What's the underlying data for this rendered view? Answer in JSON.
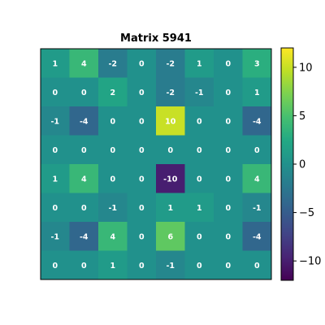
{
  "chart_data": {
    "type": "heatmap",
    "title": "Matrix 5941",
    "xlabel": "",
    "ylabel": "",
    "rows": 8,
    "cols": 8,
    "values": [
      [
        1,
        4,
        -2,
        0,
        -2,
        1,
        0,
        3
      ],
      [
        0,
        0,
        2,
        0,
        -2,
        -1,
        0,
        1
      ],
      [
        -1,
        -4,
        0,
        0,
        10,
        0,
        0,
        -4
      ],
      [
        0,
        0,
        0,
        0,
        0,
        0,
        0,
        0
      ],
      [
        1,
        4,
        0,
        0,
        -10,
        0,
        0,
        4
      ],
      [
        0,
        0,
        -1,
        0,
        1,
        1,
        0,
        -1
      ],
      [
        -1,
        -4,
        4,
        0,
        6,
        0,
        0,
        -4
      ],
      [
        0,
        0,
        1,
        0,
        -1,
        0,
        0,
        0
      ]
    ],
    "colormap": "viridis",
    "vmin": -12,
    "vmax": 12,
    "colorbar_ticks": [
      10,
      5,
      0,
      -5,
      -10
    ],
    "colorbar_tick_labels": [
      "10",
      "5",
      "0",
      "−5",
      "−10"
    ],
    "grid": false,
    "legend": "none"
  }
}
